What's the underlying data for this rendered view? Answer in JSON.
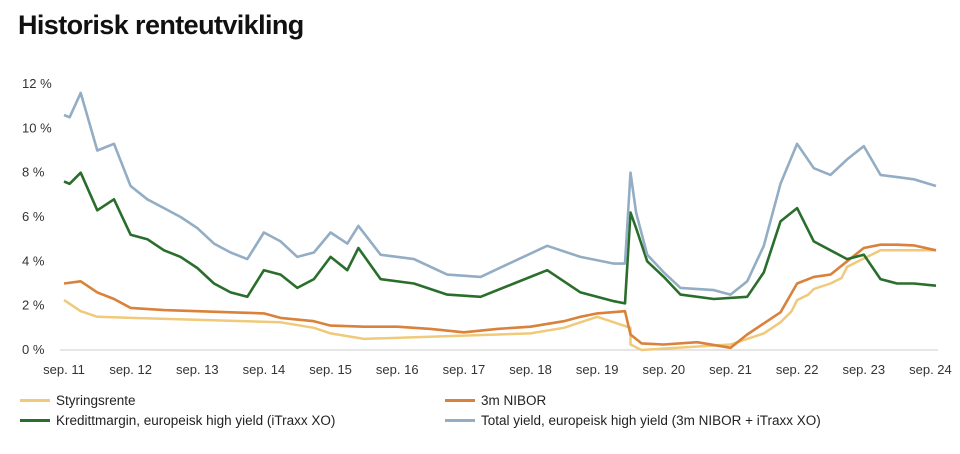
{
  "title": "Historisk renteutvikling",
  "chart_data": {
    "type": "line",
    "title": "Historisk renteutvikling",
    "x_start": "2011-09",
    "x_end": "2024-10",
    "x_tick_labels": [
      "sep. 11",
      "sep. 12",
      "sep. 13",
      "sep. 14",
      "sep. 15",
      "sep. 16",
      "sep. 17",
      "sep. 18",
      "sep. 19",
      "sep. 20",
      "sep. 21",
      "sep. 22",
      "sep. 23",
      "sep. 24"
    ],
    "y_tick_labels": [
      "0 %",
      "2 %",
      "4 %",
      "6 %",
      "8 %",
      "10 %",
      "12 %"
    ],
    "y_ticks": [
      0,
      2,
      4,
      6,
      8,
      10,
      12
    ],
    "ylim": [
      0,
      12
    ],
    "grid": "horizontal baseline only",
    "legend_position": "bottom",
    "series": [
      {
        "name": "Styringsrente",
        "color": "#f0c97a",
        "points": [
          [
            "2011-09",
            2.25
          ],
          [
            "2011-12",
            1.75
          ],
          [
            "2012-03",
            1.5
          ],
          [
            "2014-12",
            1.25
          ],
          [
            "2015-06",
            1.0
          ],
          [
            "2015-09",
            0.75
          ],
          [
            "2016-03",
            0.5
          ],
          [
            "2018-09",
            0.75
          ],
          [
            "2019-03",
            1.0
          ],
          [
            "2019-06",
            1.25
          ],
          [
            "2019-09",
            1.5
          ],
          [
            "2020-03",
            1.0
          ],
          [
            "2020-03",
            0.25
          ],
          [
            "2020-05",
            0.0
          ],
          [
            "2021-09",
            0.25
          ],
          [
            "2021-12",
            0.5
          ],
          [
            "2022-03",
            0.75
          ],
          [
            "2022-06",
            1.25
          ],
          [
            "2022-08",
            1.75
          ],
          [
            "2022-09",
            2.25
          ],
          [
            "2022-11",
            2.5
          ],
          [
            "2022-12",
            2.75
          ],
          [
            "2023-03",
            3.0
          ],
          [
            "2023-05",
            3.25
          ],
          [
            "2023-06",
            3.75
          ],
          [
            "2023-08",
            4.0
          ],
          [
            "2023-12",
            4.5
          ],
          [
            "2024-10",
            4.5
          ]
        ]
      },
      {
        "name": "3m NIBOR",
        "color": "#d9823b",
        "points": [
          [
            "2011-09",
            3.0
          ],
          [
            "2011-12",
            3.1
          ],
          [
            "2012-03",
            2.6
          ],
          [
            "2012-06",
            2.3
          ],
          [
            "2012-09",
            1.9
          ],
          [
            "2013-03",
            1.8
          ],
          [
            "2013-09",
            1.75
          ],
          [
            "2014-03",
            1.7
          ],
          [
            "2014-09",
            1.65
          ],
          [
            "2014-12",
            1.45
          ],
          [
            "2015-06",
            1.3
          ],
          [
            "2015-09",
            1.1
          ],
          [
            "2016-03",
            1.05
          ],
          [
            "2016-09",
            1.05
          ],
          [
            "2017-03",
            0.95
          ],
          [
            "2017-09",
            0.8
          ],
          [
            "2018-03",
            0.95
          ],
          [
            "2018-09",
            1.05
          ],
          [
            "2019-03",
            1.3
          ],
          [
            "2019-06",
            1.5
          ],
          [
            "2019-09",
            1.65
          ],
          [
            "2020-02",
            1.75
          ],
          [
            "2020-03",
            0.7
          ],
          [
            "2020-05",
            0.3
          ],
          [
            "2020-09",
            0.25
          ],
          [
            "2021-03",
            0.35
          ],
          [
            "2021-09",
            0.1
          ],
          [
            "2021-12",
            0.7
          ],
          [
            "2022-03",
            1.2
          ],
          [
            "2022-06",
            1.7
          ],
          [
            "2022-09",
            3.0
          ],
          [
            "2022-12",
            3.3
          ],
          [
            "2023-03",
            3.4
          ],
          [
            "2023-06",
            4.0
          ],
          [
            "2023-09",
            4.6
          ],
          [
            "2023-12",
            4.75
          ],
          [
            "2024-03",
            4.75
          ],
          [
            "2024-06",
            4.72
          ],
          [
            "2024-10",
            4.5
          ]
        ]
      },
      {
        "name": "Kredittmargin, europeisk high yield (iTraxx XO)",
        "color": "#2a6e2c",
        "points": [
          [
            "2011-09",
            7.6
          ],
          [
            "2011-10",
            7.5
          ],
          [
            "2011-12",
            8.0
          ],
          [
            "2012-03",
            6.3
          ],
          [
            "2012-06",
            6.8
          ],
          [
            "2012-09",
            5.2
          ],
          [
            "2012-12",
            5.0
          ],
          [
            "2013-03",
            4.5
          ],
          [
            "2013-06",
            4.2
          ],
          [
            "2013-09",
            3.7
          ],
          [
            "2013-12",
            3.0
          ],
          [
            "2014-03",
            2.6
          ],
          [
            "2014-06",
            2.4
          ],
          [
            "2014-09",
            3.6
          ],
          [
            "2014-12",
            3.4
          ],
          [
            "2015-03",
            2.8
          ],
          [
            "2015-06",
            3.2
          ],
          [
            "2015-09",
            4.2
          ],
          [
            "2015-12",
            3.6
          ],
          [
            "2016-02",
            4.6
          ],
          [
            "2016-06",
            3.2
          ],
          [
            "2016-12",
            3.0
          ],
          [
            "2017-06",
            2.5
          ],
          [
            "2017-12",
            2.4
          ],
          [
            "2018-06",
            3.0
          ],
          [
            "2018-12",
            3.6
          ],
          [
            "2019-06",
            2.6
          ],
          [
            "2019-12",
            2.2
          ],
          [
            "2020-02",
            2.1
          ],
          [
            "2020-03",
            6.2
          ],
          [
            "2020-04",
            5.5
          ],
          [
            "2020-06",
            4.0
          ],
          [
            "2020-09",
            3.3
          ],
          [
            "2020-12",
            2.5
          ],
          [
            "2021-06",
            2.3
          ],
          [
            "2021-12",
            2.4
          ],
          [
            "2022-03",
            3.5
          ],
          [
            "2022-06",
            5.8
          ],
          [
            "2022-09",
            6.4
          ],
          [
            "2022-12",
            4.9
          ],
          [
            "2023-03",
            4.5
          ],
          [
            "2023-06",
            4.1
          ],
          [
            "2023-09",
            4.3
          ],
          [
            "2023-12",
            3.2
          ],
          [
            "2024-03",
            3.0
          ],
          [
            "2024-06",
            3.0
          ],
          [
            "2024-10",
            2.9
          ]
        ]
      },
      {
        "name": "Total yield, europeisk high yield (3m NIBOR + iTraxx XO)",
        "color": "#93adc4",
        "points": [
          [
            "2011-09",
            10.6
          ],
          [
            "2011-10",
            10.5
          ],
          [
            "2011-12",
            11.6
          ],
          [
            "2012-03",
            9.0
          ],
          [
            "2012-06",
            9.3
          ],
          [
            "2012-09",
            7.4
          ],
          [
            "2012-12",
            6.8
          ],
          [
            "2013-03",
            6.4
          ],
          [
            "2013-06",
            6.0
          ],
          [
            "2013-09",
            5.5
          ],
          [
            "2013-12",
            4.8
          ],
          [
            "2014-03",
            4.4
          ],
          [
            "2014-06",
            4.1
          ],
          [
            "2014-09",
            5.3
          ],
          [
            "2014-12",
            4.9
          ],
          [
            "2015-03",
            4.2
          ],
          [
            "2015-06",
            4.4
          ],
          [
            "2015-09",
            5.3
          ],
          [
            "2015-12",
            4.8
          ],
          [
            "2016-02",
            5.6
          ],
          [
            "2016-06",
            4.3
          ],
          [
            "2016-12",
            4.1
          ],
          [
            "2017-06",
            3.4
          ],
          [
            "2017-12",
            3.3
          ],
          [
            "2018-06",
            4.0
          ],
          [
            "2018-12",
            4.7
          ],
          [
            "2019-06",
            4.2
          ],
          [
            "2019-12",
            3.9
          ],
          [
            "2020-02",
            3.9
          ],
          [
            "2020-03",
            8.0
          ],
          [
            "2020-04",
            6.2
          ],
          [
            "2020-06",
            4.3
          ],
          [
            "2020-09",
            3.5
          ],
          [
            "2020-12",
            2.8
          ],
          [
            "2021-06",
            2.7
          ],
          [
            "2021-09",
            2.5
          ],
          [
            "2021-12",
            3.1
          ],
          [
            "2022-03",
            4.7
          ],
          [
            "2022-06",
            7.5
          ],
          [
            "2022-09",
            9.3
          ],
          [
            "2022-12",
            8.2
          ],
          [
            "2023-03",
            7.9
          ],
          [
            "2023-06",
            8.6
          ],
          [
            "2023-09",
            9.2
          ],
          [
            "2023-12",
            7.9
          ],
          [
            "2024-03",
            7.8
          ],
          [
            "2024-06",
            7.7
          ],
          [
            "2024-10",
            7.4
          ]
        ]
      }
    ]
  }
}
